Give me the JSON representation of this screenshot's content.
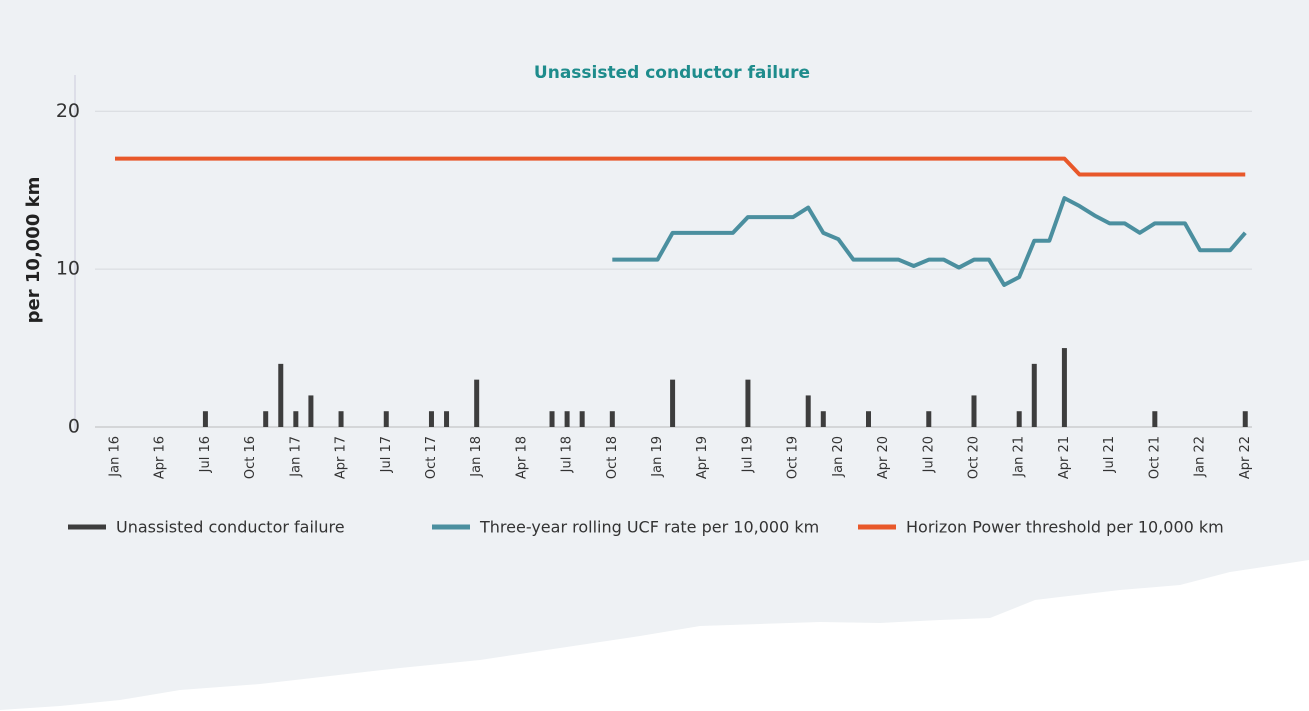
{
  "chart_data": {
    "type": "bar-line",
    "title": "Unassisted conductor failure",
    "y_label": "per 10,000 km",
    "categories": [
      "Jan 16",
      null,
      null,
      "Apr 16",
      null,
      null,
      "Jul 16",
      null,
      null,
      "Oct 16",
      null,
      null,
      "Jan 17",
      null,
      null,
      "Apr 17",
      null,
      null,
      "Jul 17",
      null,
      null,
      "Oct 17",
      null,
      null,
      "Jan 18",
      null,
      null,
      "Apr 18",
      null,
      null,
      "Jul 18",
      null,
      null,
      "Oct 18",
      null,
      null,
      "Jan 19",
      null,
      null,
      "Apr 19",
      null,
      null,
      "Jul 19",
      null,
      null,
      "Oct 19",
      null,
      null,
      "Jan 20",
      null,
      null,
      "Apr 20",
      null,
      null,
      "Jul 20",
      null,
      null,
      "Oct 20",
      null,
      null,
      "Jan 21",
      null,
      null,
      "Apr 21",
      null,
      null,
      "Jul 21",
      null,
      null,
      "Oct 21",
      null,
      null,
      "Jan 22",
      null,
      null,
      "Apr 22"
    ],
    "ylim": [
      0,
      22.3
    ],
    "yticks": [
      0,
      10,
      20
    ],
    "grid": true,
    "series": [
      {
        "name": "Unassisted conductor failure",
        "kind": "bar",
        "color": "#3d3d3d",
        "values": [
          0,
          0,
          0,
          0,
          0,
          0,
          1,
          0,
          0,
          0,
          1,
          4,
          1,
          2,
          0,
          1,
          0,
          0,
          1,
          0,
          0,
          1,
          1,
          0,
          3,
          0,
          0,
          0,
          0,
          1,
          1,
          1,
          0,
          1,
          0,
          0,
          0,
          3,
          0,
          0,
          0,
          0,
          3,
          0,
          0,
          0,
          2,
          1,
          0,
          0,
          1,
          0,
          0,
          0,
          1,
          0,
          0,
          2,
          0,
          0,
          1,
          4,
          0,
          5,
          0,
          0,
          0,
          0,
          0,
          1,
          0,
          0,
          0,
          0,
          0,
          1
        ]
      },
      {
        "name": "Three-year rolling UCF rate per 10,000 km",
        "kind": "line",
        "color": "#4b8f9f",
        "values": [
          null,
          null,
          null,
          null,
          null,
          null,
          null,
          null,
          null,
          null,
          null,
          null,
          null,
          null,
          null,
          null,
          null,
          null,
          null,
          null,
          null,
          null,
          null,
          null,
          null,
          null,
          null,
          null,
          null,
          null,
          null,
          null,
          null,
          10.6,
          10.6,
          10.6,
          10.6,
          12.3,
          12.3,
          12.3,
          12.3,
          12.3,
          13.3,
          13.3,
          13.3,
          13.3,
          13.9,
          12.3,
          11.9,
          10.6,
          10.6,
          10.6,
          10.6,
          10.2,
          10.6,
          10.6,
          10.1,
          10.6,
          10.6,
          9.0,
          9.5,
          11.8,
          11.8,
          14.5,
          14.0,
          13.4,
          12.9,
          12.9,
          12.3,
          12.9,
          12.9,
          12.9,
          11.2,
          11.2,
          11.2,
          12.3
        ]
      },
      {
        "name": "Horizon Power threshold per 10,000 km",
        "kind": "line",
        "color": "#e8582a",
        "values": [
          17,
          17,
          17,
          17,
          17,
          17,
          17,
          17,
          17,
          17,
          17,
          17,
          17,
          17,
          17,
          17,
          17,
          17,
          17,
          17,
          17,
          17,
          17,
          17,
          17,
          17,
          17,
          17,
          17,
          17,
          17,
          17,
          17,
          17,
          17,
          17,
          17,
          17,
          17,
          17,
          17,
          17,
          17,
          17,
          17,
          17,
          17,
          17,
          17,
          17,
          17,
          17,
          17,
          17,
          17,
          17,
          17,
          17,
          17,
          17,
          17,
          17,
          17,
          17,
          16,
          16,
          16,
          16,
          16,
          16,
          16,
          16,
          16,
          16,
          16,
          16
        ]
      }
    ]
  }
}
